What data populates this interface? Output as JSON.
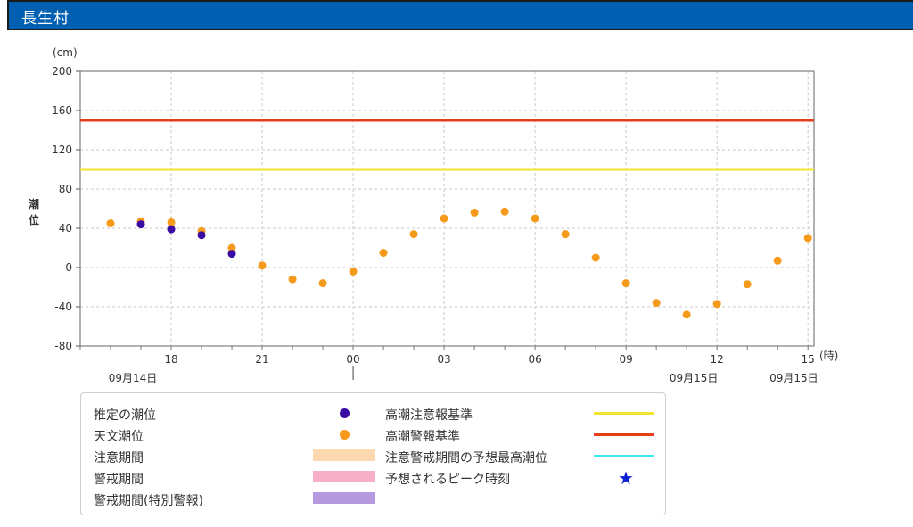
{
  "header": {
    "title": "長生村"
  },
  "chart_data": {
    "type": "scatter",
    "ylabel": "潮位",
    "y_unit": "(cm)",
    "x_unit": "(時)",
    "ylim": [
      -80,
      200
    ],
    "yticks": [
      -80,
      -40,
      0,
      40,
      80,
      120,
      160,
      200
    ],
    "xlim_hours": [
      15,
      39.2
    ],
    "xticks": [
      {
        "h": 18,
        "label": "18"
      },
      {
        "h": 21,
        "label": "21"
      },
      {
        "h": 24,
        "label": "00"
      },
      {
        "h": 27,
        "label": "03"
      },
      {
        "h": 30,
        "label": "06"
      },
      {
        "h": 33,
        "label": "09"
      },
      {
        "h": 36,
        "label": "12"
      },
      {
        "h": 39,
        "label": "15"
      }
    ],
    "date_labels": [
      {
        "h": 16.5,
        "label": "09月14日"
      },
      {
        "h": 35.0,
        "label": "09月15日"
      },
      {
        "h": 38.3,
        "label": "09月15日"
      }
    ],
    "grid": true,
    "series": [
      {
        "name": "天文潮位",
        "color": "#f59a1b",
        "points": [
          [
            16,
            45
          ],
          [
            17,
            47
          ],
          [
            18,
            46
          ],
          [
            19,
            37
          ],
          [
            20,
            20
          ],
          [
            21,
            2
          ],
          [
            22,
            -12
          ],
          [
            23,
            -16
          ],
          [
            24,
            -4
          ],
          [
            25,
            15
          ],
          [
            26,
            34
          ],
          [
            27,
            50
          ],
          [
            28,
            56
          ],
          [
            29,
            57
          ],
          [
            30,
            50
          ],
          [
            31,
            34
          ],
          [
            32,
            10
          ],
          [
            33,
            -16
          ],
          [
            34,
            -36
          ],
          [
            35,
            -48
          ],
          [
            36,
            -37
          ],
          [
            37,
            -17
          ],
          [
            38,
            7
          ],
          [
            39,
            30
          ]
        ]
      },
      {
        "name": "推定の潮位",
        "color": "#3a0ca3",
        "points": [
          [
            17,
            44
          ],
          [
            18,
            39
          ],
          [
            19,
            33
          ],
          [
            20,
            14
          ]
        ]
      }
    ],
    "reference_lines": [
      {
        "name": "高潮警報基準",
        "value": 150,
        "color": "#e0401a"
      },
      {
        "name": "高潮注意報基準",
        "value": 100,
        "color": "#f0e630"
      }
    ]
  },
  "legend": {
    "left": [
      {
        "label": "推定の潮位",
        "kind": "dot",
        "color": "#3a0ca3"
      },
      {
        "label": "天文潮位",
        "kind": "dot",
        "color": "#f59a1b"
      },
      {
        "label": "注意期間",
        "kind": "bar",
        "color": "#fcd9ae"
      },
      {
        "label": "警戒期間",
        "kind": "bar",
        "color": "#f8b0c8"
      },
      {
        "label": "警戒期間(特別警報)",
        "kind": "bar",
        "color": "#b59ae0"
      }
    ],
    "right": [
      {
        "label": "高潮注意報基準",
        "kind": "line",
        "color": "#f0e630"
      },
      {
        "label": "高潮警報基準",
        "kind": "line",
        "color": "#e0401a"
      },
      {
        "label": "注意警戒期間の予想最高潮位",
        "kind": "line",
        "color": "#3ee8f0"
      },
      {
        "label": "予想されるピーク時刻",
        "kind": "star",
        "color": "#0a1fd6",
        "symbol": "★"
      }
    ]
  }
}
